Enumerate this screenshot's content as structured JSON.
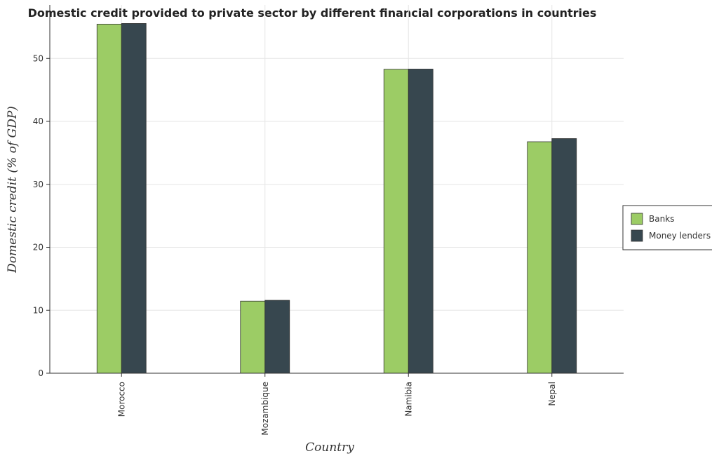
{
  "chart_data": {
    "type": "bar",
    "title": "Domestic credit provided to private sector by different financial corporations in countries",
    "xlabel": "Country",
    "ylabel": "Domestic credit (% of GDP)",
    "categories": [
      "Morocco",
      "Mozambique",
      "Namibia",
      "Nepal"
    ],
    "series": [
      {
        "name": "Banks",
        "values": [
          55.45,
          11.45,
          48.28,
          36.77
        ],
        "color": "#9ccc65"
      },
      {
        "name": "Money lenders",
        "values": [
          55.55,
          11.58,
          48.31,
          37.27
        ],
        "color": "#37474f"
      }
    ],
    "ylim": [
      0,
      58.5
    ],
    "yticks": [
      0,
      10,
      20,
      30,
      40,
      50
    ],
    "grid": true,
    "legend_position": "right"
  }
}
